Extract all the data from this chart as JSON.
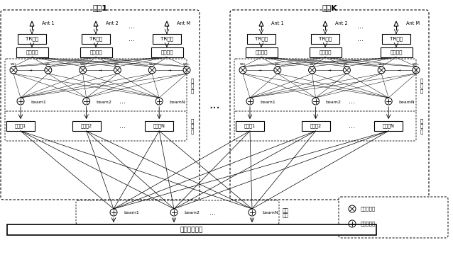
{
  "title_left": "子件1",
  "title_right": "子件K",
  "tr_label": "TR组件",
  "ch_label": "通道均衡",
  "delay_labels": [
    "延迟线1",
    "延迟线2",
    "延迟线N"
  ],
  "phase_label": "移\n相\n器",
  "delay_side_label": "延\n时\n器",
  "combine_label": "波束\n合成",
  "bus_label": "综合处理部件",
  "legend_x_label": "奥斯幂级数",
  "legend_plus_label": "奥斯幂级数",
  "ant_labels": [
    "Ant 1",
    "Ant 2",
    "Ant M"
  ],
  "beam_labels": [
    "beam1",
    "beam2",
    "beamN"
  ],
  "w_labels_top": [
    "w₁₁",
    "w₁ₙ",
    "w₂₁",
    "w₂ₙ",
    "wₘ₁",
    "wₘₙ"
  ],
  "dots": "..."
}
